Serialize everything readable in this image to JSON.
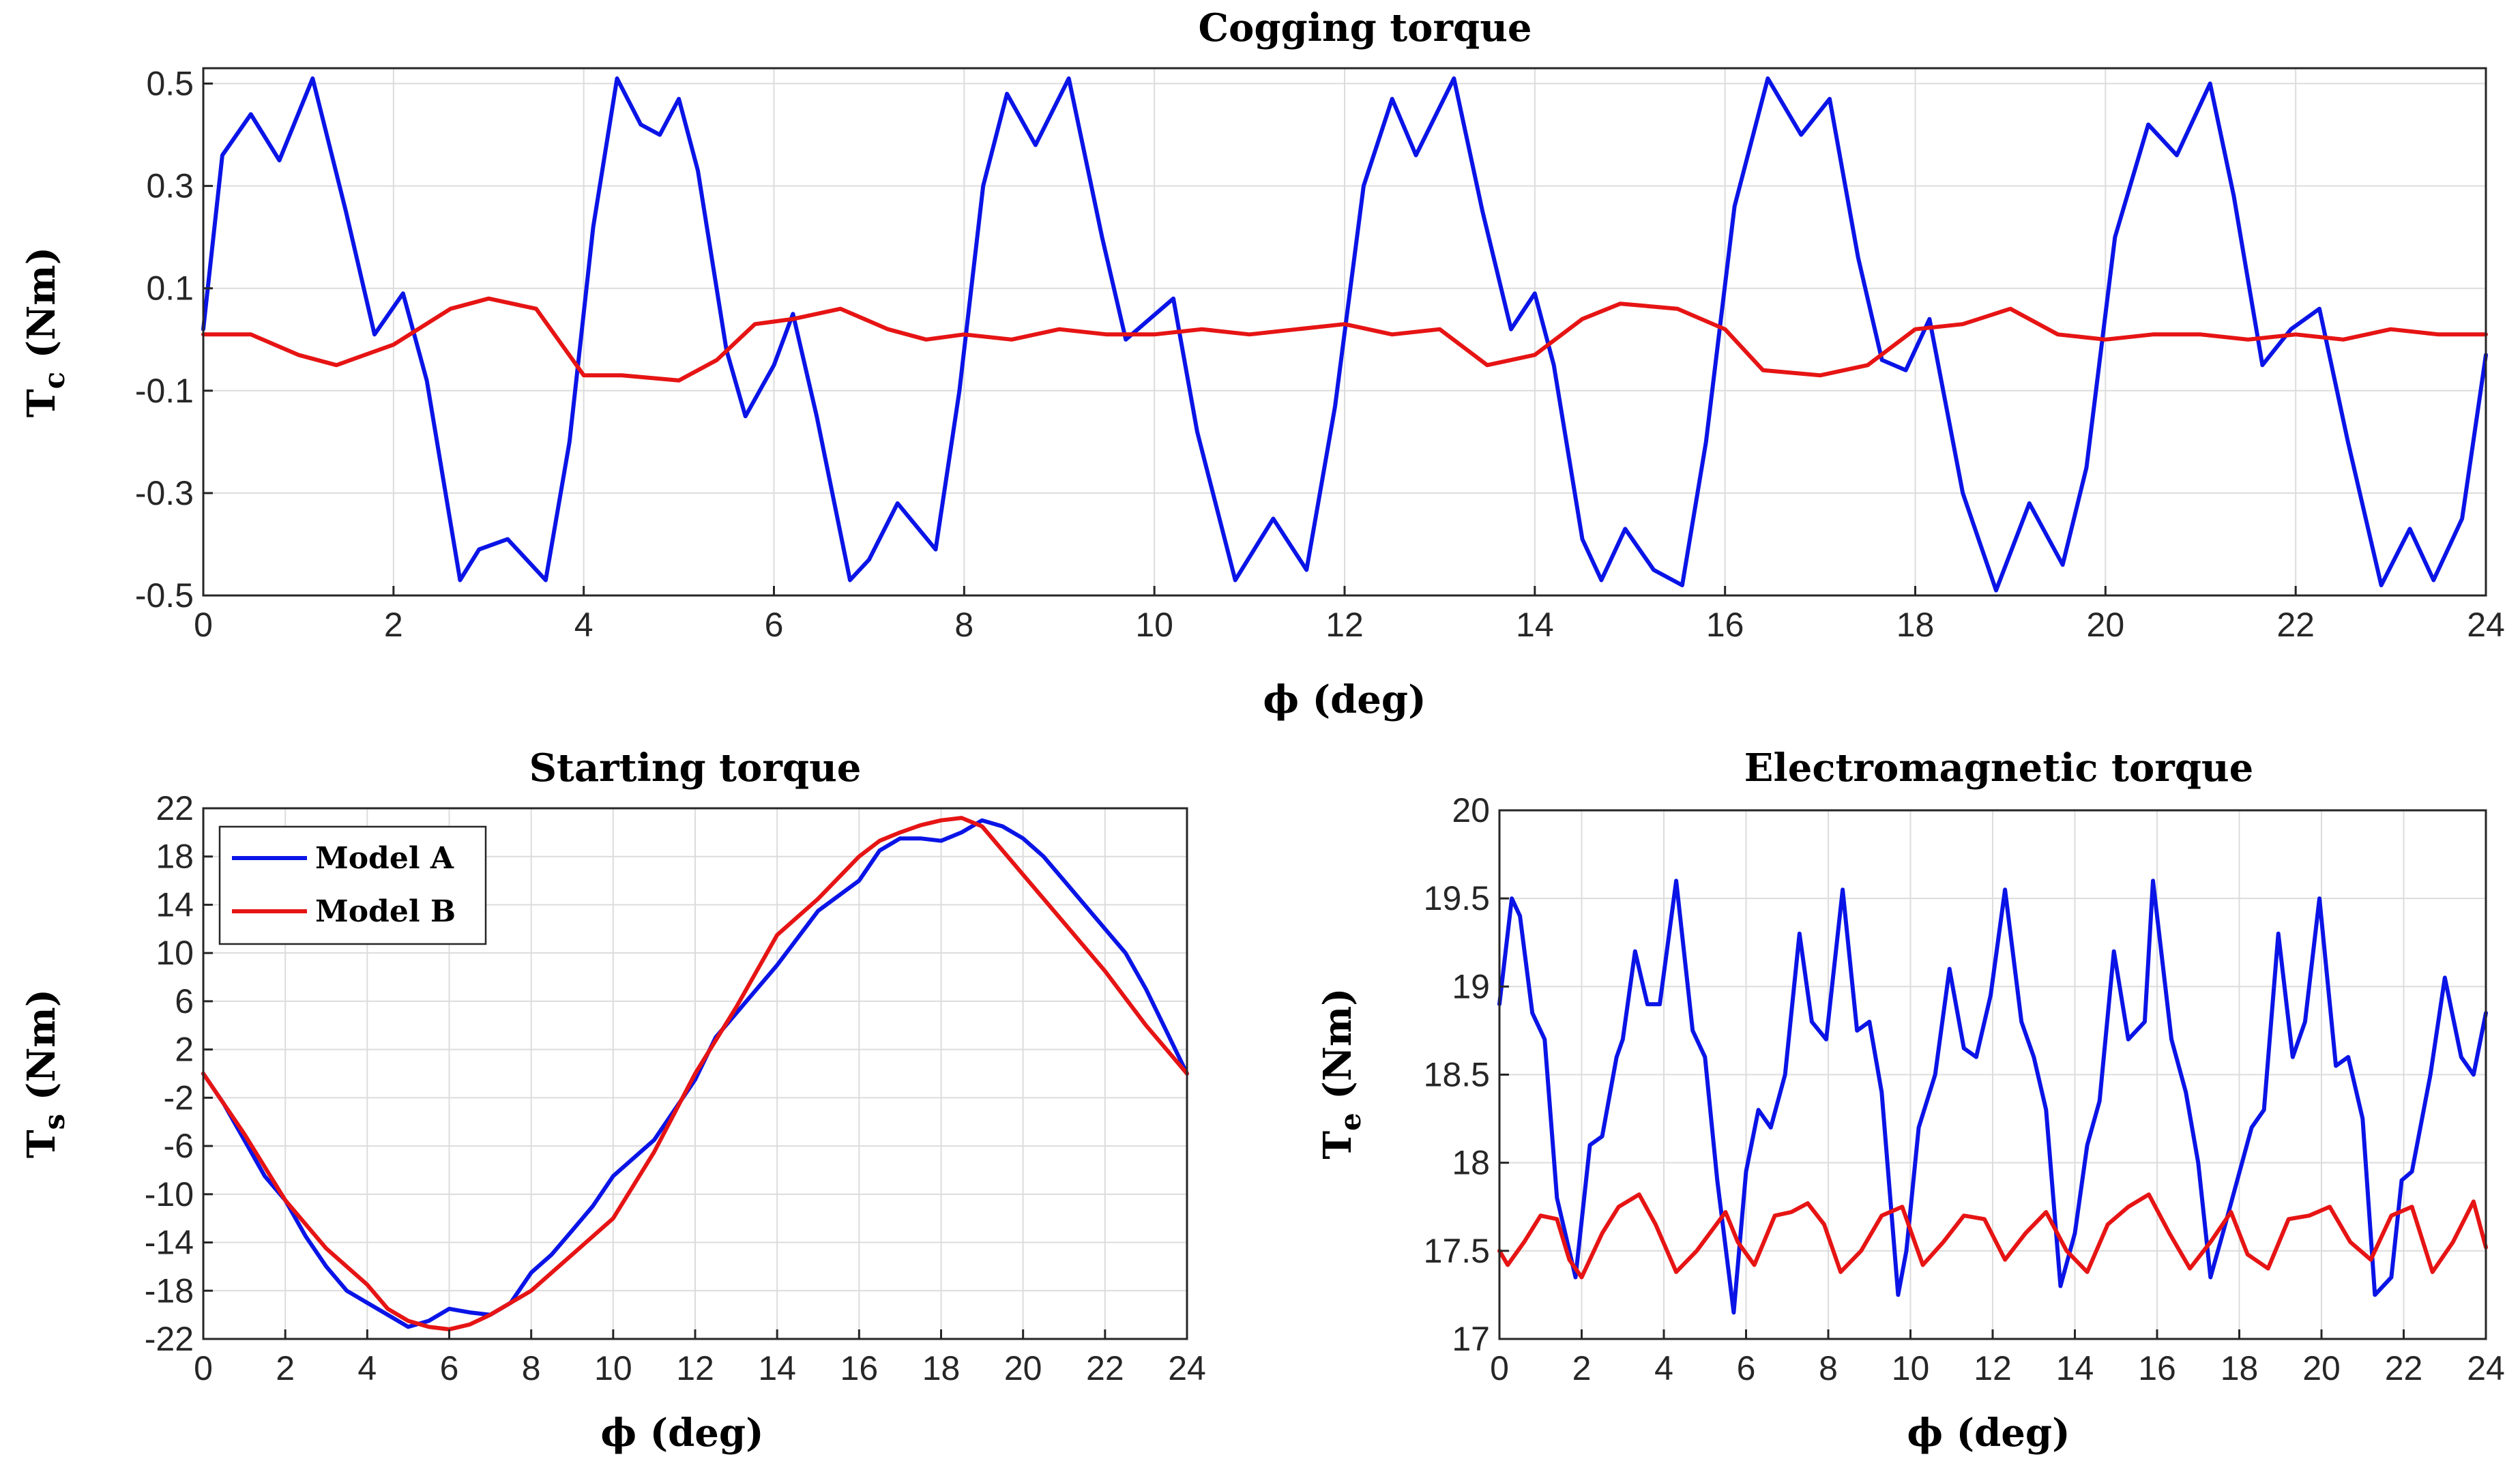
{
  "chart_data": [
    {
      "id": "cogging",
      "type": "line",
      "title": "Cogging torque",
      "xlabel": "ϕ (deg)",
      "ylabel": "T_c (Nm)",
      "ylabel_main": "T",
      "ylabel_sub": "c",
      "ylabel_unit": " (Nm)",
      "xlim": [
        0,
        24
      ],
      "ylim": [
        -0.5,
        0.53
      ],
      "xticks": [
        0,
        2,
        4,
        6,
        8,
        10,
        12,
        14,
        16,
        18,
        20,
        22,
        24
      ],
      "yticks": [
        0.5,
        0.3,
        0.1,
        -0.1,
        -0.3,
        -0.5
      ],
      "ytick_labels": [
        "0.5",
        "0.3",
        "0.1",
        "-0.1",
        "-0.3",
        "-0.5"
      ],
      "grid": true,
      "series": [
        {
          "name": "Model A",
          "color": "#0a14e6",
          "x": [
            0,
            0.2,
            0.5,
            0.8,
            1.15,
            1.5,
            1.8,
            2.1,
            2.35,
            2.7,
            2.9,
            3.2,
            3.6,
            3.85,
            4.1,
            4.35,
            4.6,
            4.8,
            5.0,
            5.2,
            5.5,
            5.7,
            6.0,
            6.2,
            6.45,
            6.8,
            7.0,
            7.3,
            7.7,
            7.95,
            8.2,
            8.45,
            8.75,
            9.1,
            9.45,
            9.7,
            10.2,
            10.45,
            10.85,
            11.25,
            11.6,
            11.9,
            12.2,
            12.5,
            12.75,
            13.15,
            13.45,
            13.75,
            14.0,
            14.2,
            14.5,
            14.7,
            14.95,
            15.25,
            15.55,
            15.8,
            16.1,
            16.45,
            16.8,
            17.1,
            17.4,
            17.65,
            17.9,
            18.15,
            18.5,
            18.85,
            19.2,
            19.55,
            19.8,
            20.1,
            20.45,
            20.75,
            21.1,
            21.35,
            21.65,
            21.95,
            22.25,
            22.55,
            22.9,
            23.2,
            23.45,
            23.75,
            24
          ],
          "values": [
            0.02,
            0.36,
            0.44,
            0.35,
            0.51,
            0.25,
            0.01,
            0.09,
            -0.08,
            -0.47,
            -0.41,
            -0.39,
            -0.47,
            -0.2,
            0.22,
            0.51,
            0.42,
            0.4,
            0.47,
            0.33,
            -0.02,
            -0.15,
            -0.05,
            0.05,
            -0.15,
            -0.47,
            -0.43,
            -0.32,
            -0.41,
            -0.1,
            0.3,
            0.48,
            0.38,
            0.51,
            0.2,
            0.0,
            0.08,
            -0.18,
            -0.47,
            -0.35,
            -0.45,
            -0.13,
            0.3,
            0.47,
            0.36,
            0.51,
            0.25,
            0.02,
            0.09,
            -0.05,
            -0.39,
            -0.47,
            -0.37,
            -0.45,
            -0.48,
            -0.2,
            0.26,
            0.51,
            0.4,
            0.47,
            0.16,
            -0.04,
            -0.06,
            0.04,
            -0.3,
            -0.49,
            -0.32,
            -0.44,
            -0.25,
            0.2,
            0.42,
            0.36,
            0.5,
            0.28,
            -0.05,
            0.02,
            0.06,
            -0.2,
            -0.48,
            -0.37,
            -0.47,
            -0.35,
            -0.03
          ]
        },
        {
          "name": "Model B",
          "color": "#e61414",
          "x": [
            0,
            0.5,
            1.0,
            1.4,
            2.0,
            2.6,
            3.0,
            3.5,
            4.0,
            4.4,
            5.0,
            5.4,
            5.8,
            6.2,
            6.7,
            7.2,
            7.6,
            8.0,
            8.5,
            9.0,
            9.5,
            10.0,
            10.5,
            11.0,
            11.5,
            12.0,
            12.5,
            13.0,
            13.5,
            14.0,
            14.5,
            14.9,
            15.5,
            16.0,
            16.4,
            17.0,
            17.5,
            18.0,
            18.5,
            19.0,
            19.5,
            20.0,
            20.5,
            21.0,
            21.5,
            22.0,
            22.5,
            23.0,
            23.5,
            24.0
          ],
          "values": [
            0.01,
            0.01,
            -0.03,
            -0.05,
            -0.01,
            0.06,
            0.08,
            0.06,
            -0.07,
            -0.07,
            -0.08,
            -0.04,
            0.03,
            0.04,
            0.06,
            0.02,
            0.0,
            0.01,
            0.0,
            0.02,
            0.01,
            0.01,
            0.02,
            0.01,
            0.02,
            0.03,
            0.01,
            0.02,
            -0.05,
            -0.03,
            0.04,
            0.07,
            0.06,
            0.02,
            -0.06,
            -0.07,
            -0.05,
            0.02,
            0.03,
            0.06,
            0.01,
            0.0,
            0.01,
            0.01,
            0.0,
            0.01,
            0.0,
            0.02,
            0.01,
            0.01
          ]
        }
      ]
    },
    {
      "id": "starting",
      "type": "line",
      "title": "Starting torque",
      "xlabel": "ϕ (deg)",
      "ylabel": "T_s (Nm)",
      "ylabel_main": "T",
      "ylabel_sub": "s",
      "ylabel_unit": " (Nm)",
      "xlim": [
        0,
        24
      ],
      "ylim": [
        -22,
        22
      ],
      "xticks": [
        0,
        2,
        4,
        6,
        8,
        10,
        12,
        14,
        16,
        18,
        20,
        22,
        24
      ],
      "yticks": [
        22,
        18,
        14,
        10,
        6,
        2,
        -2,
        -6,
        -10,
        -14,
        -18,
        -22
      ],
      "ytick_labels": [
        "22",
        "18",
        "14",
        "10",
        "6",
        "2",
        "-2",
        "-6",
        "-10",
        "-14",
        "-18",
        "-22"
      ],
      "grid": true,
      "legend": {
        "placement": "top-left",
        "entries": [
          "Model A",
          "Model B"
        ]
      },
      "series": [
        {
          "name": "Model A",
          "color": "#0a14e6",
          "x": [
            0,
            0.5,
            1.0,
            1.5,
            2.0,
            2.5,
            3.0,
            3.5,
            4.0,
            4.5,
            5.0,
            5.5,
            6.0,
            6.5,
            7.0,
            7.5,
            8.0,
            8.5,
            9.0,
            9.5,
            10.0,
            11.0,
            12.0,
            12.5,
            13.0,
            14.0,
            15.0,
            16.0,
            16.5,
            17.0,
            17.5,
            18.0,
            18.5,
            19.0,
            19.5,
            20.0,
            20.5,
            21.0,
            21.5,
            22.0,
            22.5,
            23.0,
            23.5,
            24.0
          ],
          "values": [
            0,
            -2.5,
            -5.5,
            -8.5,
            -10.5,
            -13.5,
            -16.0,
            -18.0,
            -19.0,
            -20.0,
            -21.0,
            -20.5,
            -19.5,
            -19.8,
            -20.0,
            -19.0,
            -16.5,
            -15.0,
            -13.0,
            -11.0,
            -8.5,
            -5.5,
            -0.5,
            3.0,
            5.0,
            9.0,
            13.5,
            16.0,
            18.5,
            19.5,
            19.5,
            19.3,
            20.0,
            21.0,
            20.5,
            19.5,
            18.0,
            16.0,
            14.0,
            12.0,
            10.0,
            7.0,
            3.5,
            0
          ]
        },
        {
          "name": "Model B",
          "color": "#e61414",
          "x": [
            0,
            1.0,
            2.0,
            3.0,
            4.0,
            4.5,
            5.0,
            5.5,
            6.0,
            6.5,
            7.0,
            8.0,
            9.0,
            10.0,
            11.0,
            12.0,
            13.0,
            14.0,
            15.0,
            16.0,
            16.5,
            17.0,
            17.5,
            18.0,
            18.5,
            19.0,
            20.0,
            21.0,
            22.0,
            23.0,
            24.0
          ],
          "values": [
            0,
            -5.0,
            -10.5,
            -14.5,
            -17.5,
            -19.5,
            -20.5,
            -21.0,
            -21.2,
            -20.8,
            -20.0,
            -18.0,
            -15.0,
            -12.0,
            -6.5,
            0,
            5.5,
            11.5,
            14.5,
            18.0,
            19.3,
            20.0,
            20.6,
            21.0,
            21.2,
            20.5,
            16.5,
            12.5,
            8.5,
            4.0,
            0
          ]
        }
      ]
    },
    {
      "id": "electromagnetic",
      "type": "line",
      "title": "Electromagnetic torque",
      "xlabel": "ϕ (deg)",
      "ylabel": "T_e (Nm)",
      "ylabel_main": "T",
      "ylabel_sub": "e",
      "ylabel_unit": " (Nm)",
      "xlim": [
        0,
        24
      ],
      "ylim": [
        17,
        20
      ],
      "xticks": [
        0,
        2,
        4,
        6,
        8,
        10,
        12,
        14,
        16,
        18,
        20,
        22,
        24
      ],
      "yticks": [
        20,
        19.5,
        19,
        18.5,
        18,
        17.5,
        17
      ],
      "ytick_labels": [
        "20",
        "19.5",
        "19",
        "18.5",
        "18",
        "17.5",
        "17"
      ],
      "grid": true,
      "series": [
        {
          "name": "Model A",
          "color": "#0a14e6",
          "x": [
            0,
            0.3,
            0.5,
            0.8,
            1.1,
            1.4,
            1.85,
            2.2,
            2.5,
            2.85,
            3.0,
            3.3,
            3.6,
            3.9,
            4.3,
            4.7,
            5.0,
            5.3,
            5.7,
            6.0,
            6.3,
            6.6,
            6.95,
            7.3,
            7.6,
            7.95,
            8.35,
            8.7,
            9.0,
            9.3,
            9.7,
            9.9,
            10.2,
            10.6,
            10.95,
            11.3,
            11.6,
            11.95,
            12.3,
            12.7,
            13.0,
            13.3,
            13.65,
            14.0,
            14.3,
            14.6,
            14.95,
            15.3,
            15.7,
            15.9,
            16.35,
            16.7,
            17.0,
            17.3,
            17.6,
            17.95,
            18.3,
            18.6,
            18.95,
            19.3,
            19.6,
            19.95,
            20.35,
            20.65,
            21.0,
            21.3,
            21.7,
            21.95,
            22.2,
            22.65,
            23.0,
            23.4,
            23.7,
            24.0
          ],
          "values": [
            18.9,
            19.5,
            19.4,
            18.85,
            18.7,
            17.8,
            17.35,
            18.1,
            18.15,
            18.6,
            18.7,
            19.2,
            18.9,
            18.9,
            19.6,
            18.75,
            18.6,
            17.9,
            17.15,
            17.95,
            18.3,
            18.2,
            18.5,
            19.3,
            18.8,
            18.7,
            19.55,
            18.75,
            18.8,
            18.4,
            17.25,
            17.5,
            18.2,
            18.5,
            19.1,
            18.65,
            18.6,
            18.95,
            19.55,
            18.8,
            18.6,
            18.3,
            17.3,
            17.6,
            18.1,
            18.35,
            19.2,
            18.7,
            18.8,
            19.6,
            18.7,
            18.4,
            18.0,
            17.35,
            17.6,
            17.9,
            18.2,
            18.3,
            19.3,
            18.6,
            18.8,
            19.5,
            18.55,
            18.6,
            18.25,
            17.25,
            17.35,
            17.9,
            17.95,
            18.5,
            19.05,
            18.6,
            18.5,
            18.85
          ]
        },
        {
          "name": "Model B",
          "color": "#e61414",
          "x": [
            0,
            0.2,
            0.6,
            1.0,
            1.4,
            1.7,
            2.0,
            2.5,
            2.9,
            3.4,
            3.8,
            4.3,
            4.8,
            5.5,
            5.8,
            6.2,
            6.7,
            7.1,
            7.5,
            7.9,
            8.3,
            8.8,
            9.3,
            9.8,
            10.3,
            10.8,
            11.3,
            11.8,
            12.3,
            12.8,
            13.3,
            13.8,
            14.3,
            14.8,
            15.3,
            15.8,
            16.3,
            16.8,
            17.3,
            17.8,
            18.2,
            18.7,
            19.2,
            19.7,
            20.2,
            20.7,
            21.2,
            21.7,
            22.2,
            22.7,
            23.2,
            23.7,
            24.0
          ],
          "values": [
            17.5,
            17.42,
            17.55,
            17.7,
            17.68,
            17.45,
            17.35,
            17.6,
            17.75,
            17.82,
            17.65,
            17.38,
            17.5,
            17.72,
            17.55,
            17.42,
            17.7,
            17.72,
            17.77,
            17.65,
            17.38,
            17.5,
            17.7,
            17.75,
            17.42,
            17.55,
            17.7,
            17.68,
            17.45,
            17.6,
            17.72,
            17.5,
            17.38,
            17.65,
            17.75,
            17.82,
            17.6,
            17.4,
            17.55,
            17.72,
            17.48,
            17.4,
            17.68,
            17.7,
            17.75,
            17.55,
            17.45,
            17.7,
            17.75,
            17.38,
            17.55,
            17.78,
            17.52
          ]
        }
      ]
    }
  ]
}
